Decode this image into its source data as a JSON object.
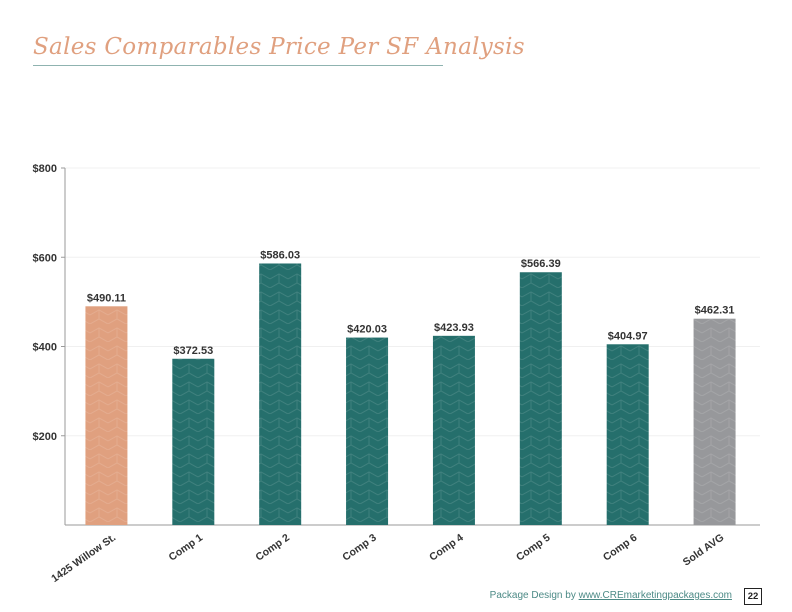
{
  "page": {
    "title": "Sales Comparables Price Per SF Analysis",
    "footer_prefix": "Package Design by",
    "footer_link": "www.CREmarketingpackages.com",
    "page_number": "22"
  },
  "colors": {
    "title": "#e0a07f",
    "subject_bar": "#e0a07f",
    "comp_bar": "#256f6c",
    "avg_bar": "#97989b",
    "axis": "#9a9a9a",
    "grid": "#f0f0f0"
  },
  "chart_data": {
    "type": "bar",
    "title": "",
    "xlabel": "",
    "ylabel": "",
    "ylim": [
      0,
      800
    ],
    "yticks": [
      200,
      400,
      600,
      800
    ],
    "ytick_labels": [
      "$200",
      "$400",
      "$600",
      "$800"
    ],
    "grid": true,
    "categories": [
      "1425 Willow St.",
      "Comp 1",
      "Comp 2",
      "Comp 3",
      "Comp 4",
      "Comp 5",
      "Comp 6",
      "Sold AVG"
    ],
    "values": [
      490.11,
      372.53,
      586.03,
      420.03,
      423.93,
      566.39,
      404.97,
      462.31
    ],
    "value_labels": [
      "$490.11",
      "$372.53",
      "$586.03",
      "$420.03",
      "$423.93",
      "$566.39",
      "$404.97",
      "$462.31"
    ],
    "bar_roles": [
      "subject",
      "comp",
      "comp",
      "comp",
      "comp",
      "comp",
      "comp",
      "average"
    ]
  }
}
